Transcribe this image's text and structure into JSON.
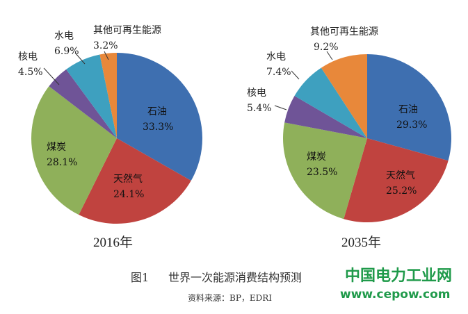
{
  "chart_data": [
    {
      "type": "pie",
      "title": "2016年",
      "slices": [
        {
          "key": "oil",
          "label": "石油",
          "value": 33.3,
          "display": "33.3%",
          "color": "#3e6fb0"
        },
        {
          "key": "gas",
          "label": "天然气",
          "value": 24.1,
          "display": "24.1%",
          "color": "#c0433f"
        },
        {
          "key": "coal",
          "label": "煤炭",
          "value": 28.1,
          "display": "28.1%",
          "color": "#8fb05a"
        },
        {
          "key": "nuclear",
          "label": "核电",
          "value": 4.5,
          "display": "4.5%",
          "color": "#6f5497"
        },
        {
          "key": "hydro",
          "label": "水电",
          "value": 6.9,
          "display": "6.9%",
          "color": "#3ea0bf"
        },
        {
          "key": "renew",
          "label": "其他可再生能源",
          "value": 3.2,
          "display": "3.2%",
          "color": "#e8883a"
        }
      ]
    },
    {
      "type": "pie",
      "title": "2035年",
      "slices": [
        {
          "key": "oil",
          "label": "石油",
          "value": 29.3,
          "display": "29.3%",
          "color": "#3e6fb0"
        },
        {
          "key": "gas",
          "label": "天然气",
          "value": 25.2,
          "display": "25.2%",
          "color": "#c0433f"
        },
        {
          "key": "coal",
          "label": "煤炭",
          "value": 23.5,
          "display": "23.5%",
          "color": "#8fb05a"
        },
        {
          "key": "nuclear",
          "label": "核电",
          "value": 5.4,
          "display": "5.4%",
          "color": "#6f5497"
        },
        {
          "key": "hydro",
          "label": "水电",
          "value": 7.4,
          "display": "7.4%",
          "color": "#3ea0bf"
        },
        {
          "key": "renew",
          "label": "其他可再生能源",
          "value": 9.2,
          "display": "9.2%",
          "color": "#e8883a"
        }
      ]
    }
  ],
  "caption": {
    "figure": "图1",
    "title": "世界一次能源消费结构预测",
    "source": "资料来源：BP，EDRI"
  },
  "watermark": {
    "name": "中国电力工业网",
    "url": "www.cepow.com",
    "color": "#1f9a4a"
  }
}
